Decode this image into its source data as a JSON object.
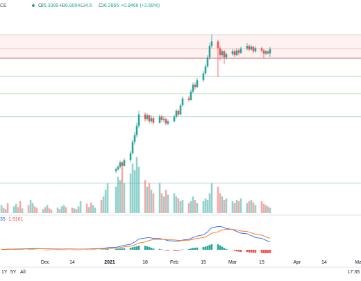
{
  "chart_data": {
    "type": "candlestick",
    "header": {
      "symbol": "CE",
      "o": "O",
      "h": "H",
      "l": "L",
      "c": "C",
      "change_label": "+0.9466 (+2.68%)"
    },
    "xlim": [
      -21.7,
      151.7
    ],
    "xticks": [
      {
        "value": 0,
        "label": "Dec"
      },
      {
        "value": 13,
        "label": "14"
      },
      {
        "value": 31,
        "label": "2021"
      },
      {
        "value": 48,
        "label": "18"
      },
      {
        "value": 62,
        "label": "Feb"
      },
      {
        "value": 76,
        "label": "15"
      },
      {
        "value": 90,
        "label": "Mar"
      },
      {
        "value": 104,
        "label": "15"
      },
      {
        "value": 121,
        "label": "Apr"
      },
      {
        "value": 134,
        "label": "14"
      },
      {
        "value": 151,
        "label": "May"
      }
    ],
    "ylim": [
      0,
      44
    ],
    "up_color": "#26a69a",
    "down_color": "#ef5350",
    "x": [
      -21,
      -20,
      -19,
      -18,
      -15,
      -14,
      -13,
      -12,
      -11,
      -8,
      -7,
      -6,
      -5,
      -4,
      -1,
      0,
      1,
      2,
      3,
      6,
      7,
      8,
      9,
      10,
      13,
      14,
      15,
      16,
      17,
      20,
      21,
      22,
      23,
      24,
      27,
      28,
      29,
      30,
      34,
      35,
      36,
      37,
      38,
      41,
      42,
      43,
      44,
      45,
      48,
      49,
      50,
      51,
      52,
      55,
      56,
      57,
      58,
      59,
      62,
      63,
      64,
      65,
      66,
      69,
      70,
      71,
      72,
      73,
      76,
      77,
      78,
      79,
      80,
      83,
      84,
      85,
      86,
      87,
      90,
      91,
      92,
      93,
      94,
      97,
      98,
      99,
      100,
      101,
      104,
      105,
      106,
      107,
      108
    ],
    "open": [
      null,
      null,
      null,
      null,
      null,
      null,
      null,
      null,
      null,
      null,
      null,
      null,
      null,
      null,
      null,
      null,
      null,
      null,
      null,
      null,
      null,
      null,
      null,
      null,
      null,
      null,
      null,
      null,
      null,
      null,
      null,
      null,
      null,
      null,
      null,
      null,
      null,
      null,
      9.6,
      10.0,
      10.5,
      11.5,
      10.8,
      12.0,
      13.5,
      16.0,
      17.5,
      19.5,
      22.0,
      21.0,
      21.8,
      20.5,
      21.2,
      20.2,
      21.5,
      20.8,
      21.0,
      20.0,
      20.5,
      21.5,
      22.8,
      22.0,
      24.0,
      25.5,
      25.2,
      27.0,
      28.5,
      28.0,
      29.5,
      31.0,
      32.5,
      34.5,
      37.0,
      38.0,
      36.5,
      35.0,
      35.8,
      34.5,
      35.2,
      35.8,
      35.0,
      36.0,
      35.5,
      36.4,
      37.0,
      36.2,
      36.8,
      35.8,
      36.5,
      36.0,
      35.3,
      35.8,
      35.3399
    ],
    "high": [
      null,
      null,
      null,
      null,
      null,
      null,
      null,
      null,
      null,
      null,
      null,
      null,
      null,
      null,
      null,
      null,
      null,
      null,
      null,
      null,
      null,
      null,
      null,
      null,
      null,
      null,
      null,
      null,
      null,
      null,
      null,
      null,
      null,
      null,
      null,
      null,
      null,
      null,
      10.4,
      10.9,
      11.9,
      11.8,
      12.4,
      14.0,
      16.5,
      18.2,
      20.2,
      22.8,
      22.5,
      22.3,
      22.0,
      21.8,
      21.5,
      22.0,
      21.9,
      21.6,
      21.3,
      20.9,
      21.9,
      23.2,
      23.1,
      24.4,
      26.0,
      26.1,
      27.5,
      29.0,
      29.0,
      30.0,
      31.5,
      33.0,
      35.0,
      37.6,
      39.5,
      38.3,
      37.0,
      36.2,
      36.1,
      35.6,
      36.3,
      36.2,
      36.5,
      36.4,
      36.8,
      37.6,
      37.3,
      37.2,
      37.0,
      36.9,
      36.8,
      36.3,
      36.1,
      36.0,
      36.8004
    ],
    "low": [
      null,
      null,
      null,
      null,
      null,
      null,
      null,
      null,
      null,
      null,
      null,
      null,
      null,
      null,
      null,
      null,
      null,
      null,
      null,
      null,
      null,
      null,
      null,
      null,
      null,
      null,
      null,
      null,
      null,
      null,
      null,
      null,
      null,
      null,
      null,
      null,
      null,
      null,
      9.2,
      9.7,
      10.2,
      10.5,
      10.6,
      11.6,
      13.2,
      15.4,
      17.0,
      19.0,
      20.4,
      20.6,
      20.0,
      20.1,
      19.8,
      20.0,
      20.4,
      20.3,
      19.6,
      19.7,
      20.3,
      21.2,
      21.7,
      21.8,
      23.7,
      24.8,
      25.0,
      26.7,
      27.5,
      27.8,
      29.2,
      30.7,
      32.2,
      34.0,
      36.5,
      30.2,
      33.8,
      34.4,
      33.0,
      34.0,
      34.9,
      34.6,
      34.8,
      35.0,
      35.2,
      36.0,
      35.8,
      36.0,
      35.4,
      35.5,
      35.6,
      34.2,
      35.0,
      35.1,
      34.6
    ],
    "close": [
      null,
      null,
      null,
      null,
      null,
      null,
      null,
      null,
      null,
      null,
      null,
      null,
      null,
      null,
      null,
      null,
      null,
      null,
      null,
      null,
      null,
      null,
      null,
      null,
      null,
      null,
      null,
      null,
      null,
      null,
      null,
      null,
      null,
      null,
      null,
      null,
      null,
      null,
      10.0,
      10.5,
      11.5,
      10.8,
      12.0,
      13.5,
      16.0,
      17.5,
      19.5,
      22.0,
      21.0,
      21.8,
      20.5,
      21.2,
      20.2,
      21.5,
      20.8,
      21.0,
      20.0,
      20.5,
      21.5,
      22.8,
      22.0,
      24.0,
      25.5,
      25.2,
      27.0,
      28.5,
      28.0,
      29.5,
      31.0,
      32.5,
      34.5,
      37.0,
      38.0,
      36.5,
      35.0,
      35.8,
      34.5,
      35.2,
      35.8,
      35.0,
      36.0,
      35.5,
      36.4,
      37.0,
      36.2,
      36.8,
      35.8,
      36.5,
      36.0,
      35.3,
      35.8,
      35.3399,
      36.2865
    ],
    "volume": {
      "ylim": [
        0,
        100
      ],
      "values": [
        12,
        8,
        6,
        15,
        10,
        14,
        9,
        18,
        7,
        12,
        20,
        15,
        10,
        8,
        6,
        9,
        12,
        7,
        5,
        8,
        6,
        10,
        12,
        9,
        8,
        7,
        6,
        10,
        18,
        14,
        9,
        16,
        12,
        8,
        20,
        25,
        35,
        45,
        40,
        55,
        50,
        70,
        45,
        60,
        75,
        65,
        85,
        70,
        50,
        40,
        45,
        35,
        30,
        45,
        30,
        25,
        35,
        28,
        30,
        25,
        22,
        18,
        20,
        15,
        18,
        25,
        20,
        15,
        18,
        22,
        20,
        30,
        45,
        40,
        30,
        25,
        20,
        22,
        18,
        15,
        20,
        18,
        22,
        15,
        18,
        20,
        16,
        12,
        18,
        14,
        12,
        10,
        8
      ],
      "up": [
        true,
        false,
        true,
        false,
        true,
        true,
        false,
        false,
        true,
        false,
        true,
        true,
        false,
        false,
        true,
        false,
        true,
        false,
        false,
        true,
        false,
        true,
        true,
        false,
        false,
        true,
        false,
        true,
        true,
        false,
        true,
        false,
        true,
        true,
        false,
        true,
        true,
        true,
        true,
        true,
        true,
        false,
        true,
        true,
        true,
        true,
        true,
        true,
        false,
        true,
        false,
        true,
        false,
        true,
        false,
        true,
        false,
        true,
        true,
        true,
        false,
        true,
        true,
        false,
        true,
        true,
        false,
        true,
        true,
        true,
        true,
        true,
        true,
        false,
        false,
        true,
        false,
        true,
        true,
        false,
        true,
        false,
        true,
        true,
        false,
        true,
        false,
        true,
        false,
        false,
        true,
        false,
        true
      ]
    },
    "macd": {
      "title": "35",
      "ylim": [
        -2,
        8
      ],
      "line_color": "#2962ff",
      "signal_color": "#ff6d00",
      "values": [
        0.1,
        0.1,
        0.12,
        0.15,
        0.15,
        0.18,
        0.2,
        0.2,
        0.22,
        0.25,
        0.28,
        0.3,
        0.3,
        0.28,
        0.25,
        0.22,
        0.2,
        0.2,
        0.18,
        0.15,
        0.15,
        0.15,
        0.18,
        0.2,
        0.2,
        0.18,
        0.15,
        0.15,
        0.18,
        0.2,
        0.2,
        0.22,
        0.25,
        0.25,
        0.3,
        0.35,
        0.4,
        0.5,
        0.6,
        0.7,
        0.85,
        0.95,
        1.1,
        1.3,
        1.6,
        1.9,
        2.2,
        2.6,
        2.8,
        2.9,
        2.9,
        2.85,
        2.75,
        2.7,
        2.6,
        2.5,
        2.35,
        2.2,
        2.1,
        2.1,
        2.05,
        2.15,
        2.35,
        2.5,
        2.7,
        2.95,
        3.1,
        3.3,
        3.6,
        3.9,
        4.3,
        4.8,
        5.3,
        5.6,
        5.6,
        5.5,
        5.3,
        5.1,
        4.9,
        4.6,
        4.4,
        4.2,
        4.0,
        3.85,
        3.6,
        3.4,
        3.2,
        2.95,
        2.75,
        2.5,
        2.3,
        2.1,
        1.9161
      ],
      "signal": [
        0.08,
        0.09,
        0.1,
        0.11,
        0.12,
        0.13,
        0.15,
        0.16,
        0.17,
        0.19,
        0.2,
        0.22,
        0.24,
        0.25,
        0.25,
        0.25,
        0.24,
        0.23,
        0.22,
        0.21,
        0.2,
        0.19,
        0.19,
        0.19,
        0.19,
        0.19,
        0.18,
        0.18,
        0.18,
        0.18,
        0.19,
        0.19,
        0.2,
        0.21,
        0.22,
        0.25,
        0.28,
        0.32,
        0.38,
        0.45,
        0.53,
        0.62,
        0.72,
        0.84,
        0.99,
        1.17,
        1.38,
        1.62,
        1.86,
        2.07,
        2.24,
        2.36,
        2.44,
        2.49,
        2.51,
        2.51,
        2.48,
        2.42,
        2.36,
        2.31,
        2.26,
        2.24,
        2.26,
        2.31,
        2.39,
        2.5,
        2.62,
        2.76,
        2.93,
        3.12,
        3.36,
        3.65,
        3.98,
        4.3,
        4.56,
        4.75,
        4.86,
        4.91,
        4.91,
        4.85,
        4.76,
        4.65,
        4.52,
        4.39,
        4.23,
        4.07,
        3.9,
        3.71,
        3.52,
        3.32,
        3.12,
        2.92,
        2.72
      ],
      "histogram": [
        0.02,
        0.01,
        0.02,
        0.04,
        0.03,
        0.05,
        0.05,
        0.04,
        0.05,
        0.06,
        0.08,
        0.08,
        0.06,
        0.03,
        0,
        -0.03,
        -0.04,
        -0.03,
        -0.04,
        -0.06,
        -0.05,
        -0.04,
        -0.01,
        0.01,
        0.01,
        -0.01,
        -0.03,
        -0.03,
        0,
        0.02,
        0.01,
        0.03,
        0.05,
        0.04,
        0.08,
        0.1,
        0.12,
        0.18,
        0.22,
        0.25,
        0.32,
        0.33,
        0.38,
        0.46,
        0.61,
        0.73,
        0.82,
        0.98,
        0.94,
        0.83,
        0.66,
        0.49,
        0.31,
        0.21,
        0.09,
        -0.01,
        -0.13,
        -0.22,
        -0.26,
        -0.21,
        -0.21,
        -0.09,
        0.09,
        0.19,
        0.31,
        0.45,
        0.48,
        0.54,
        0.67,
        0.78,
        0.94,
        1.15,
        1.32,
        1.3,
        1.04,
        0.75,
        0.44,
        0.19,
        -0.01,
        -0.25,
        -0.36,
        -0.45,
        -0.52,
        -0.54,
        -0.63,
        -0.67,
        -0.7,
        -0.76,
        -0.77,
        -0.82,
        -0.82,
        -0.82,
        -0.8
      ]
    },
    "ranges": [
      "1Y",
      "5Y",
      "All"
    ],
    "time": "17:35"
  }
}
